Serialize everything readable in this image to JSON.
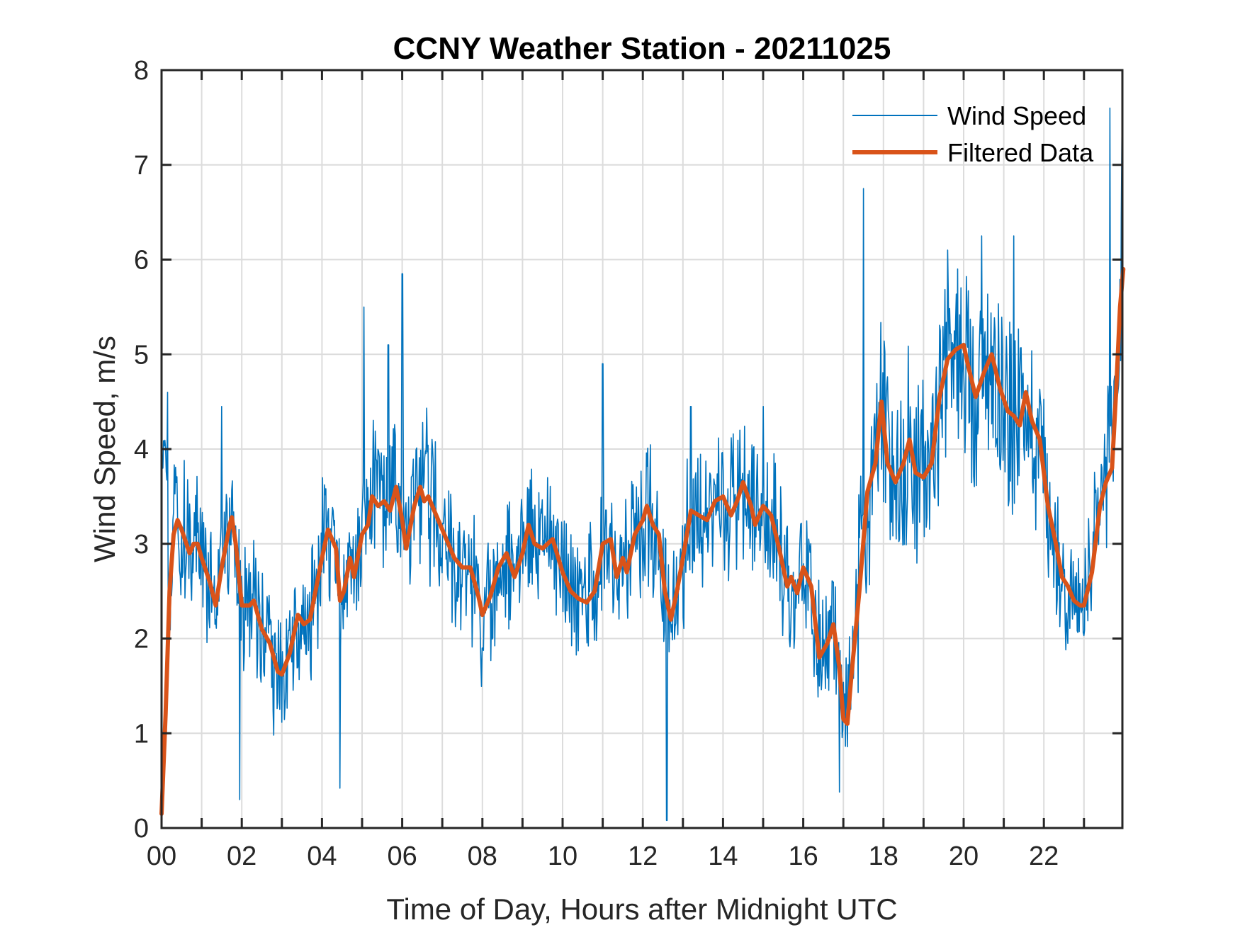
{
  "chart_data": {
    "type": "line",
    "title": "CCNY Weather Station - 20211025",
    "xlabel": "Time of Day, Hours after Midnight UTC",
    "ylabel": "Wind Speed, m/s",
    "xlim": [
      0,
      23.98
    ],
    "ylim": [
      0,
      8
    ],
    "grid": true,
    "legend_position": "top-right",
    "x_ticks": [
      0,
      2,
      4,
      6,
      8,
      10,
      12,
      14,
      16,
      18,
      20,
      22
    ],
    "x_tick_labels": [
      "00",
      "02",
      "04",
      "06",
      "08",
      "10",
      "12",
      "14",
      "16",
      "18",
      "20",
      "22"
    ],
    "x_minor_ticks_every_hour": true,
    "y_ticks": [
      0,
      1,
      2,
      3,
      4,
      5,
      6,
      7,
      8
    ],
    "y_tick_labels": [
      "0",
      "1",
      "2",
      "3",
      "4",
      "5",
      "6",
      "7",
      "8"
    ],
    "series": [
      {
        "name": "Wind Speed",
        "color": "#0072BD",
        "style": "thin",
        "notable_peaks": [
          {
            "x": 0.15,
            "y": 4.6
          },
          {
            "x": 1.5,
            "y": 4.45
          },
          {
            "x": 1.95,
            "y": 0.3
          },
          {
            "x": 2.8,
            "y": 0.98
          },
          {
            "x": 4.45,
            "y": 0.42
          },
          {
            "x": 5.05,
            "y": 5.5
          },
          {
            "x": 5.65,
            "y": 5.1
          },
          {
            "x": 6.0,
            "y": 5.85
          },
          {
            "x": 8.0,
            "y": 1.9
          },
          {
            "x": 11.0,
            "y": 4.9
          },
          {
            "x": 12.6,
            "y": 0.08
          },
          {
            "x": 13.2,
            "y": 4.45
          },
          {
            "x": 15.0,
            "y": 4.45
          },
          {
            "x": 16.9,
            "y": 0.38
          },
          {
            "x": 17.5,
            "y": 6.75
          },
          {
            "x": 19.6,
            "y": 6.1
          },
          {
            "x": 20.45,
            "y": 6.25
          },
          {
            "x": 21.25,
            "y": 6.25
          },
          {
            "x": 22.6,
            "y": 1.95
          },
          {
            "x": 23.65,
            "y": 7.6
          },
          {
            "x": 23.95,
            "y": 7.4
          }
        ]
      },
      {
        "name": "Filtered Data",
        "color": "#D95319",
        "style": "thick",
        "points": [
          [
            0,
            0.15
          ],
          [
            0.1,
            1.2
          ],
          [
            0.2,
            2.5
          ],
          [
            0.3,
            3.1
          ],
          [
            0.4,
            3.25
          ],
          [
            0.5,
            3.15
          ],
          [
            0.7,
            2.9
          ],
          [
            0.8,
            3.0
          ],
          [
            0.9,
            3.0
          ],
          [
            1.0,
            2.85
          ],
          [
            1.2,
            2.6
          ],
          [
            1.35,
            2.35
          ],
          [
            1.5,
            2.75
          ],
          [
            1.7,
            3.2
          ],
          [
            1.75,
            3.28
          ],
          [
            1.85,
            3.0
          ],
          [
            2.0,
            2.35
          ],
          [
            2.2,
            2.35
          ],
          [
            2.3,
            2.4
          ],
          [
            2.5,
            2.1
          ],
          [
            2.7,
            1.95
          ],
          [
            2.9,
            1.65
          ],
          [
            3.0,
            1.62
          ],
          [
            3.2,
            1.85
          ],
          [
            3.4,
            2.25
          ],
          [
            3.55,
            2.15
          ],
          [
            3.7,
            2.2
          ],
          [
            4.0,
            2.85
          ],
          [
            4.15,
            3.15
          ],
          [
            4.35,
            2.95
          ],
          [
            4.45,
            2.4
          ],
          [
            4.55,
            2.5
          ],
          [
            4.7,
            2.85
          ],
          [
            4.8,
            2.65
          ],
          [
            5.0,
            3.1
          ],
          [
            5.15,
            3.2
          ],
          [
            5.25,
            3.5
          ],
          [
            5.4,
            3.4
          ],
          [
            5.55,
            3.45
          ],
          [
            5.7,
            3.35
          ],
          [
            5.85,
            3.6
          ],
          [
            6.0,
            3.25
          ],
          [
            6.1,
            2.95
          ],
          [
            6.3,
            3.4
          ],
          [
            6.45,
            3.6
          ],
          [
            6.55,
            3.45
          ],
          [
            6.65,
            3.5
          ],
          [
            6.9,
            3.25
          ],
          [
            7.1,
            3.05
          ],
          [
            7.3,
            2.85
          ],
          [
            7.5,
            2.75
          ],
          [
            7.7,
            2.75
          ],
          [
            7.9,
            2.45
          ],
          [
            8.0,
            2.25
          ],
          [
            8.2,
            2.45
          ],
          [
            8.4,
            2.75
          ],
          [
            8.6,
            2.9
          ],
          [
            8.8,
            2.65
          ],
          [
            9.0,
            2.9
          ],
          [
            9.15,
            3.2
          ],
          [
            9.3,
            3.0
          ],
          [
            9.5,
            2.95
          ],
          [
            9.75,
            3.05
          ],
          [
            10.0,
            2.7
          ],
          [
            10.2,
            2.5
          ],
          [
            10.4,
            2.42
          ],
          [
            10.6,
            2.38
          ],
          [
            10.8,
            2.5
          ],
          [
            11.0,
            3.0
          ],
          [
            11.2,
            3.05
          ],
          [
            11.35,
            2.65
          ],
          [
            11.5,
            2.85
          ],
          [
            11.6,
            2.7
          ],
          [
            11.8,
            3.1
          ],
          [
            12.0,
            3.25
          ],
          [
            12.1,
            3.4
          ],
          [
            12.25,
            3.2
          ],
          [
            12.4,
            3.1
          ],
          [
            12.55,
            2.5
          ],
          [
            12.7,
            2.2
          ],
          [
            12.85,
            2.5
          ],
          [
            13.0,
            2.85
          ],
          [
            13.2,
            3.35
          ],
          [
            13.4,
            3.3
          ],
          [
            13.6,
            3.25
          ],
          [
            13.8,
            3.45
          ],
          [
            14.0,
            3.5
          ],
          [
            14.2,
            3.3
          ],
          [
            14.35,
            3.45
          ],
          [
            14.5,
            3.65
          ],
          [
            14.7,
            3.4
          ],
          [
            14.8,
            3.2
          ],
          [
            15.0,
            3.4
          ],
          [
            15.2,
            3.3
          ],
          [
            15.4,
            2.95
          ],
          [
            15.6,
            2.55
          ],
          [
            15.7,
            2.65
          ],
          [
            15.85,
            2.48
          ],
          [
            16.0,
            2.75
          ],
          [
            16.2,
            2.55
          ],
          [
            16.4,
            1.8
          ],
          [
            16.6,
            1.95
          ],
          [
            16.75,
            2.15
          ],
          [
            16.9,
            1.7
          ],
          [
            17.0,
            1.15
          ],
          [
            17.1,
            1.1
          ],
          [
            17.2,
            1.6
          ],
          [
            17.4,
            2.5
          ],
          [
            17.6,
            3.55
          ],
          [
            17.8,
            3.85
          ],
          [
            17.95,
            4.5
          ],
          [
            18.1,
            3.85
          ],
          [
            18.3,
            3.65
          ],
          [
            18.5,
            3.85
          ],
          [
            18.65,
            4.1
          ],
          [
            18.8,
            3.75
          ],
          [
            19.0,
            3.7
          ],
          [
            19.2,
            3.85
          ],
          [
            19.4,
            4.55
          ],
          [
            19.6,
            4.95
          ],
          [
            19.8,
            5.05
          ],
          [
            20.0,
            5.1
          ],
          [
            20.1,
            4.9
          ],
          [
            20.3,
            4.55
          ],
          [
            20.5,
            4.8
          ],
          [
            20.7,
            5.0
          ],
          [
            20.9,
            4.65
          ],
          [
            21.1,
            4.4
          ],
          [
            21.25,
            4.35
          ],
          [
            21.4,
            4.25
          ],
          [
            21.55,
            4.6
          ],
          [
            21.7,
            4.3
          ],
          [
            21.9,
            4.1
          ],
          [
            22.1,
            3.4
          ],
          [
            22.3,
            3.0
          ],
          [
            22.45,
            2.65
          ],
          [
            22.6,
            2.55
          ],
          [
            22.75,
            2.4
          ],
          [
            22.9,
            2.35
          ],
          [
            23.0,
            2.35
          ],
          [
            23.2,
            2.7
          ],
          [
            23.4,
            3.4
          ],
          [
            23.55,
            3.65
          ],
          [
            23.7,
            3.8
          ],
          [
            23.8,
            4.6
          ],
          [
            23.9,
            5.5
          ],
          [
            23.98,
            5.9
          ]
        ]
      }
    ]
  }
}
